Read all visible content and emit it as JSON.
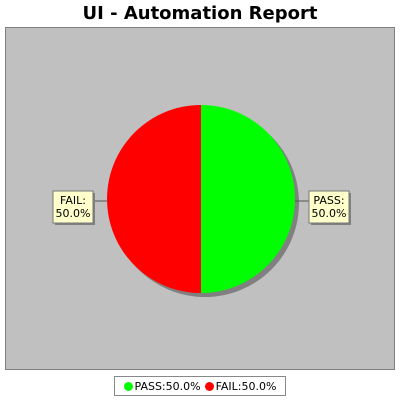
{
  "chart_data": {
    "type": "pie",
    "title": "UI - Automation Report",
    "slices": [
      {
        "name": "PASS",
        "value": 50.0,
        "label": "PASS:\n50.0%",
        "legend": "PASS:50.0%",
        "color": "#00ff00"
      },
      {
        "name": "FAIL",
        "value": 50.0,
        "label": "FAIL:\n50.0%",
        "legend": "FAIL:50.0%",
        "color": "#ff0000"
      }
    ],
    "legend_position": "bottom",
    "background_color": "#c0c0c0",
    "label_box_color": "#ffffcc"
  }
}
